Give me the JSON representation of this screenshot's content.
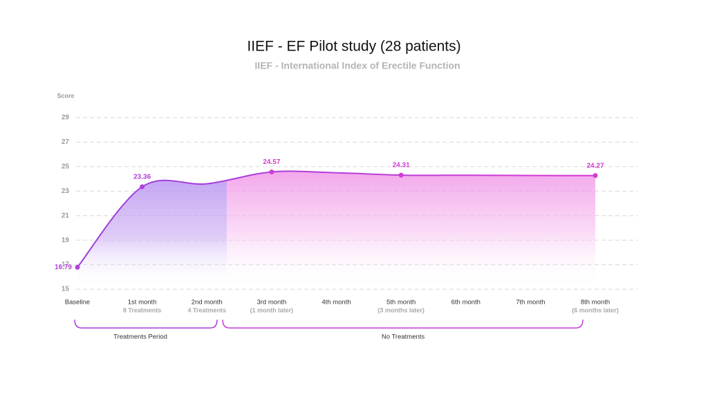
{
  "chart_data": {
    "type": "line",
    "title": "IIEF - EF Pilot study (28 patients)",
    "subtitle": "IIEF - International Index of Erectile Function",
    "y_label": "Score",
    "categories": [
      "Baseline",
      "1st month",
      "2nd month",
      "3rd month",
      "4th month",
      "5th month",
      "6th month",
      "7th month",
      "8th month"
    ],
    "category_notes": [
      null,
      "8 Treatments",
      "4 Treatments",
      "(1 month later)",
      null,
      "(3 months later)",
      null,
      null,
      "(6 months later)"
    ],
    "series": [
      {
        "name": "Score",
        "color": "#b23fd9",
        "values": [
          16.79,
          23.36,
          23.6,
          24.57,
          24.5,
          24.31,
          24.3,
          24.28,
          24.27
        ],
        "value_labels": [
          "16.79",
          "23.36",
          null,
          "24.57",
          null,
          "24.31",
          null,
          null,
          "24.27"
        ]
      }
    ],
    "ylim": [
      15,
      29
    ],
    "yticks": [
      15,
      17,
      19,
      21,
      23,
      25,
      27,
      29
    ],
    "grid": true,
    "periods": [
      "Treatments Period",
      "No Treatments"
    ]
  }
}
